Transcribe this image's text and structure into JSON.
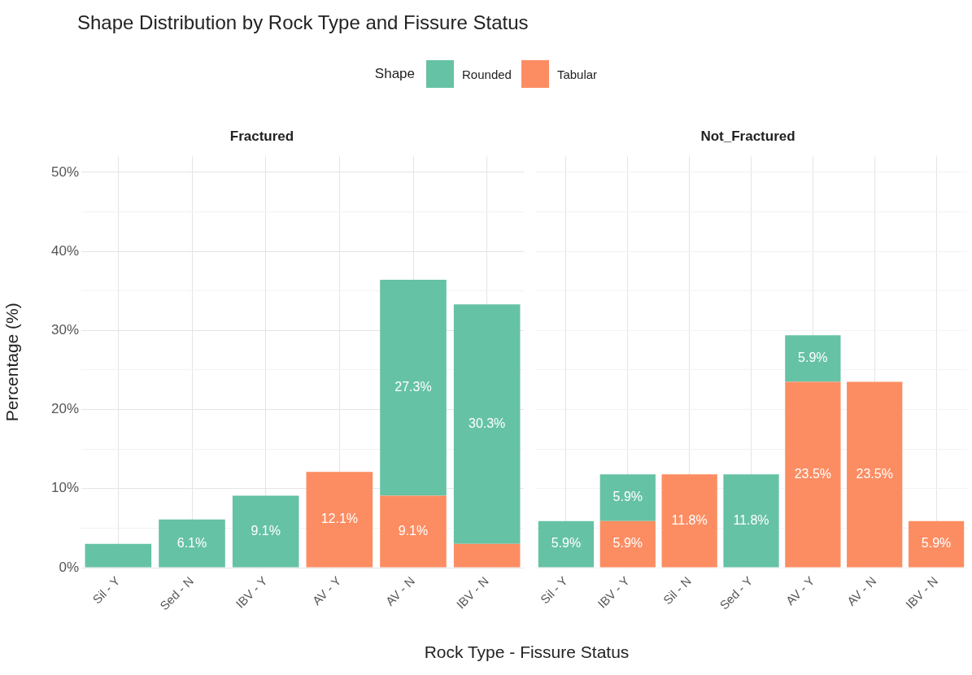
{
  "chart_data": [
    {
      "type": "bar",
      "title": "Shape Distribution by Rock Type and Fissure Status",
      "subtitle": "Fractured",
      "xlabel": "Rock Type - Fissure Status",
      "ylabel": "Percentage (%)",
      "legend_title": "Shape",
      "legend": "top",
      "grid": true,
      "stacked": true,
      "categories": [
        "Sil - Y",
        "Sed - N",
        "IBV - Y",
        "AV - Y",
        "AV - N",
        "IBV - N"
      ],
      "ylim": [
        0,
        52
      ],
      "yticks": [
        {
          "value": 0,
          "label": "0%"
        },
        {
          "value": 5,
          "label": null
        },
        {
          "value": 10,
          "label": "10%"
        },
        {
          "value": 15,
          "label": null
        },
        {
          "value": 20,
          "label": "20%"
        },
        {
          "value": 25,
          "label": null
        },
        {
          "value": 30,
          "label": "30%"
        },
        {
          "value": 35,
          "label": null
        },
        {
          "value": 40,
          "label": "40%"
        },
        {
          "value": 45,
          "label": null
        },
        {
          "value": 50,
          "label": "50%"
        }
      ],
      "series": [
        {
          "name": "Tabular",
          "color": "#fc8d62",
          "values": [
            null,
            null,
            null,
            12.1,
            9.1,
            3.0
          ],
          "value_labels": [
            null,
            null,
            null,
            "12.1%",
            "9.1%",
            null
          ]
        },
        {
          "name": "Rounded",
          "color": "#66c2a5",
          "values": [
            3.0,
            6.1,
            9.1,
            null,
            27.3,
            30.3
          ],
          "value_labels": [
            null,
            "6.1%",
            "9.1%",
            null,
            "27.3%",
            "30.3%"
          ]
        }
      ]
    },
    {
      "type": "bar",
      "title": "Not_Fractured",
      "grid": true,
      "stacked": true,
      "tick_labels": "x",
      "categories": [
        "Sil - Y",
        "IBV - Y",
        "Sil - N",
        "Sed - Y",
        "AV - Y",
        "AV - N",
        "IBV - N"
      ],
      "ylim": [
        0,
        52
      ],
      "yticks": [
        {
          "value": 0,
          "label": null
        },
        {
          "value": 5,
          "label": null
        },
        {
          "value": 10,
          "label": null
        },
        {
          "value": 15,
          "label": null
        },
        {
          "value": 20,
          "label": null
        },
        {
          "value": 25,
          "label": null
        },
        {
          "value": 30,
          "label": null
        },
        {
          "value": 35,
          "label": null
        },
        {
          "value": 40,
          "label": null
        },
        {
          "value": 45,
          "label": null
        },
        {
          "value": 50,
          "label": null
        }
      ],
      "series": [
        {
          "color": "#fc8d62",
          "values": [
            null,
            5.9,
            11.8,
            null,
            23.5,
            23.5,
            5.9
          ],
          "value_labels": [
            null,
            "5.9%",
            "11.8%",
            null,
            "23.5%",
            "23.5%",
            "5.9%"
          ]
        },
        {
          "color": "#66c2a5",
          "values": [
            5.9,
            5.9,
            null,
            11.8,
            5.9,
            null,
            null
          ],
          "value_labels": [
            "5.9%",
            "5.9%",
            null,
            "11.8%",
            "5.9%",
            null,
            null
          ]
        }
      ]
    }
  ]
}
